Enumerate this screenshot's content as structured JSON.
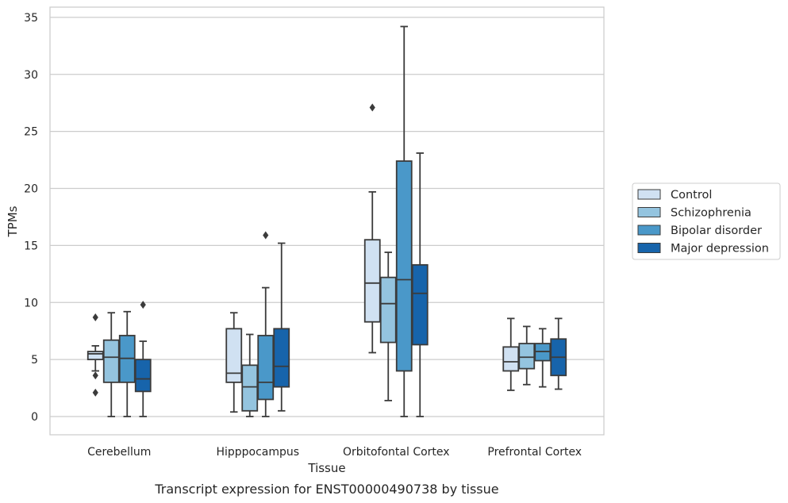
{
  "chart_data": {
    "type": "box",
    "xlabel": "Tissue",
    "ylabel": "TPMs",
    "caption": "Transcript expression for ENST00000490738 by tissue",
    "ylim": [
      -1.6,
      35.9
    ],
    "yticks": [
      0,
      5,
      10,
      15,
      20,
      25,
      30,
      35
    ],
    "grid": "horizontal",
    "legend_position": "right",
    "categories": [
      "Cerebellum",
      "Hipppocampus",
      "Orbitofontal Cortex",
      "Prefrontal Cortex"
    ],
    "series": [
      {
        "name": "Control",
        "color": "#d0e1f2",
        "boxes": [
          {
            "whislo": 4.0,
            "q1": 5.0,
            "med": 5.5,
            "q3": 5.7,
            "whishi": 6.2,
            "fliers": [
              8.7,
              3.6,
              2.1
            ]
          },
          {
            "whislo": 0.4,
            "q1": 3.0,
            "med": 3.8,
            "q3": 7.7,
            "whishi": 9.1,
            "fliers": []
          },
          {
            "whislo": 5.6,
            "q1": 8.3,
            "med": 11.7,
            "q3": 15.5,
            "whishi": 19.7,
            "fliers": [
              27.1
            ]
          },
          {
            "whislo": 2.3,
            "q1": 4.0,
            "med": 4.8,
            "q3": 6.1,
            "whishi": 8.6,
            "fliers": []
          }
        ]
      },
      {
        "name": "Schizophrenia",
        "color": "#94c4df",
        "boxes": [
          {
            "whislo": 0.0,
            "q1": 3.0,
            "med": 5.2,
            "q3": 6.7,
            "whishi": 9.1,
            "fliers": []
          },
          {
            "whislo": 0.0,
            "q1": 0.5,
            "med": 2.6,
            "q3": 4.5,
            "whishi": 7.2,
            "fliers": []
          },
          {
            "whislo": 1.4,
            "q1": 6.5,
            "med": 9.9,
            "q3": 12.2,
            "whishi": 14.4,
            "fliers": []
          },
          {
            "whislo": 2.8,
            "q1": 4.2,
            "med": 5.2,
            "q3": 6.4,
            "whishi": 7.9,
            "fliers": []
          }
        ]
      },
      {
        "name": "Bipolar disorder",
        "color": "#4a98c9",
        "boxes": [
          {
            "whislo": 0.0,
            "q1": 3.0,
            "med": 5.1,
            "q3": 7.1,
            "whishi": 9.2,
            "fliers": []
          },
          {
            "whislo": 0.0,
            "q1": 1.5,
            "med": 3.0,
            "q3": 7.1,
            "whishi": 11.3,
            "fliers": [
              15.9
            ]
          },
          {
            "whislo": 0.0,
            "q1": 4.0,
            "med": 12.0,
            "q3": 22.4,
            "whishi": 34.2,
            "fliers": []
          },
          {
            "whislo": 2.6,
            "q1": 4.9,
            "med": 5.7,
            "q3": 6.4,
            "whishi": 7.7,
            "fliers": []
          }
        ]
      },
      {
        "name": "Major depression",
        "color": "#1764ab",
        "boxes": [
          {
            "whislo": 0.0,
            "q1": 2.2,
            "med": 3.3,
            "q3": 5.0,
            "whishi": 6.6,
            "fliers": [
              9.8
            ]
          },
          {
            "whislo": 0.5,
            "q1": 2.6,
            "med": 4.4,
            "q3": 7.7,
            "whishi": 15.2,
            "fliers": []
          },
          {
            "whislo": 0.0,
            "q1": 6.3,
            "med": 10.8,
            "q3": 13.3,
            "whishi": 23.1,
            "fliers": []
          },
          {
            "whislo": 2.4,
            "q1": 3.6,
            "med": 5.2,
            "q3": 6.8,
            "whishi": 8.6,
            "fliers": []
          }
        ]
      }
    ]
  }
}
